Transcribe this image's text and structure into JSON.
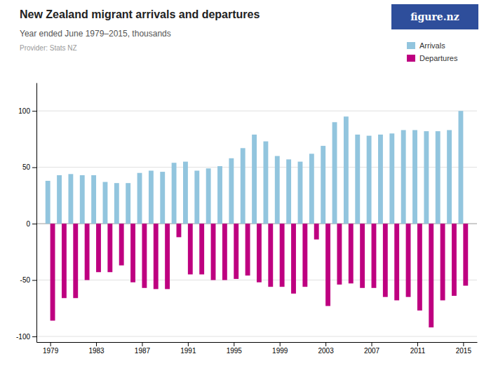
{
  "chart_data": {
    "type": "bar",
    "title": "New Zealand migrant arrivals and departures",
    "subtitle": "Year ended June 1979–2015, thousands",
    "source": "Provider: Stats NZ",
    "annotations": [
      "figure.nz"
    ],
    "x": [
      1979,
      1980,
      1981,
      1982,
      1983,
      1984,
      1985,
      1986,
      1987,
      1988,
      1989,
      1990,
      1991,
      1992,
      1993,
      1994,
      1995,
      1996,
      1997,
      1998,
      1999,
      2000,
      2001,
      2002,
      2003,
      2004,
      2005,
      2006,
      2007,
      2008,
      2009,
      2010,
      2011,
      2012,
      2013,
      2014,
      2015
    ],
    "series": [
      {
        "name": "Arrivals",
        "color": "#92C5DE",
        "values": [
          38,
          43,
          44,
          43,
          43,
          37,
          36,
          36,
          45,
          47,
          46,
          54,
          55,
          47,
          49,
          51,
          58,
          67,
          79,
          73,
          60,
          57,
          55,
          62,
          69,
          90,
          95,
          79,
          78,
          79,
          80,
          83,
          83,
          82,
          82,
          83,
          100
        ]
      },
      {
        "name": "Departures",
        "color": "#BE0080",
        "values": [
          -86,
          -66,
          -66,
          -50,
          -43,
          -43,
          -37,
          -52,
          -57,
          -58,
          -58,
          -12,
          -45,
          -45,
          -50,
          -50,
          -49,
          -46,
          -52,
          -56,
          -56,
          -62,
          -56,
          -14,
          -73,
          -54,
          -53,
          -57,
          -57,
          -65,
          -68,
          -65,
          -77,
          -92,
          -68,
          -64,
          -55
        ]
      }
    ],
    "xlim": [
      1977.8,
      2016.2
    ],
    "xticks": [
      1979,
      1983,
      1987,
      1991,
      1995,
      1999,
      2003,
      2007,
      2011,
      2015
    ],
    "ylim": [
      -105,
      125
    ],
    "yticks": [
      -100,
      -50,
      0,
      50,
      100
    ],
    "grid": true,
    "legend": "upper right"
  }
}
